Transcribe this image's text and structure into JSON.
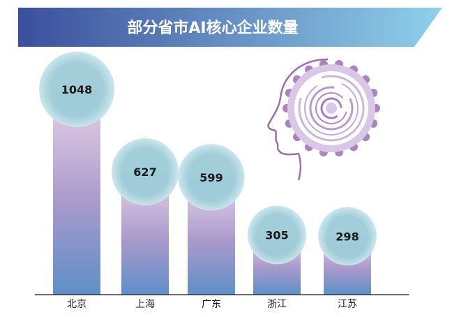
{
  "chart_data": {
    "type": "bar",
    "title": "部分省市AI核心企业数量",
    "categories": [
      "北京",
      "上海",
      "广东",
      "浙江",
      "江苏"
    ],
    "values": [
      1048,
      627,
      599,
      305,
      298
    ],
    "xlabel": "",
    "ylabel": "",
    "ylim": [
      0,
      1048
    ],
    "grid": false,
    "legend": "none",
    "data_labels": "in-bubble-at-bar-top",
    "colors": {
      "title_band_left": "#3B4F9C",
      "title_band_right": "#8FD0EA",
      "title_text": "#FFFFFF",
      "bar_top": "#E9D3E7",
      "bar_mid": "#A99ACB",
      "bar_bottom": "#5E8FC8",
      "bubble": "#9CCCD7",
      "bubble_edge": "#C9E5EB",
      "label_text": "#1A1A1A",
      "axis_line": "#1A1A1A",
      "decor_purple": "#9B6FB4",
      "decor_light": "#D9C7E6"
    }
  },
  "decor": {
    "icon": "ai-head-brain-gear-icon"
  }
}
